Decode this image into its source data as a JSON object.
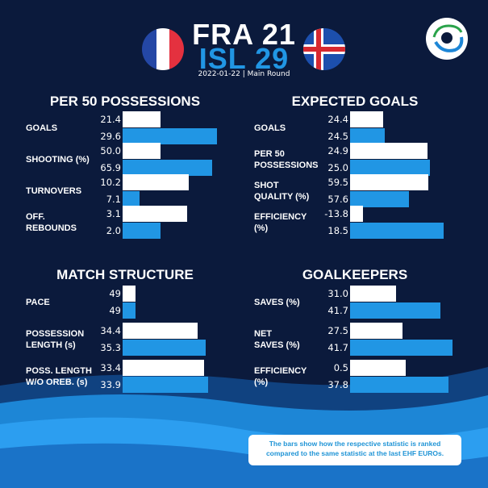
{
  "header": {
    "team1": "FRA",
    "score1": "21",
    "team2": "ISL",
    "score2": "29",
    "date_round": "2022-01-22 | Main Round",
    "flag1": "france-flag-icon",
    "flag2": "iceland-flag-icon",
    "logo": "ehf-euro-logo-icon"
  },
  "colors": {
    "team1_bar": "#ffffff",
    "team2_bar": "#2196e4",
    "background": "#0b1a3c"
  },
  "note": "The bars show how the respective statistic is ranked compared to the same statistic at the last EHF EUROs.",
  "chart_data": [
    {
      "type": "bar",
      "title": "PER 50 POSSESSIONS",
      "categories": [
        "GOALS",
        "SHOOTING (%)",
        "TURNOVERS",
        "OFF.\nREBOUNDS"
      ],
      "series": [
        {
          "values": [
            "21.4",
            "50.0",
            "10.2",
            "3.1"
          ],
          "rank": [
            0.4,
            0.4,
            0.7,
            0.68
          ]
        },
        {
          "values": [
            "29.6",
            "65.9",
            "7.1",
            "2.0"
          ],
          "rank": [
            1.0,
            0.95,
            0.18,
            0.4
          ]
        }
      ]
    },
    {
      "type": "bar",
      "title": "EXPECTED GOALS",
      "categories": [
        "GOALS",
        "PER 50\nPOSSESSIONS",
        "SHOT\nQUALITY (%)",
        "EFFICIENCY\n(%)"
      ],
      "series": [
        {
          "values": [
            "24.4",
            "24.9",
            "59.5",
            "-13.8"
          ],
          "rank": [
            0.35,
            0.83,
            0.84,
            0.14
          ]
        },
        {
          "values": [
            "24.5",
            "25.0",
            "57.6",
            "18.5"
          ],
          "rank": [
            0.37,
            0.85,
            0.63,
            1.0
          ]
        }
      ]
    },
    {
      "type": "bar",
      "title": "MATCH STRUCTURE",
      "categories": [
        "PACE",
        "POSSESSION\nLENGTH (s)",
        "POSS. LENGTH\nW/O OREB. (s)"
      ],
      "series": [
        {
          "values": [
            "49",
            "34.4",
            "33.4"
          ],
          "rank": [
            0.15,
            0.88,
            0.95
          ]
        },
        {
          "values": [
            "49",
            "35.3",
            "33.9"
          ],
          "rank": [
            0.15,
            0.97,
            1.0
          ]
        }
      ]
    },
    {
      "type": "bar",
      "title": "GOALKEEPERS",
      "categories": [
        "SAVES (%)",
        "NET\nSAVES (%)",
        "EFFICIENCY\n(%)"
      ],
      "series": [
        {
          "values": [
            "31.0",
            "27.5",
            "0.5"
          ],
          "rank": [
            0.45,
            0.51,
            0.54
          ]
        },
        {
          "values": [
            "41.7",
            "41.7",
            "37.8"
          ],
          "rank": [
            0.88,
            1.0,
            0.96
          ]
        }
      ]
    }
  ]
}
